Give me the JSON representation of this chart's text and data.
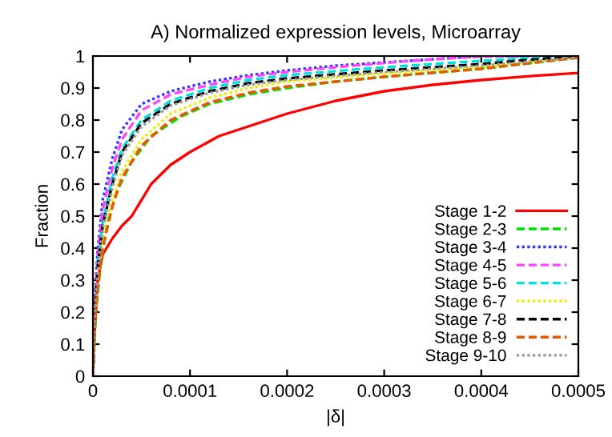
{
  "chart_data": {
    "type": "line",
    "title": "A) Normalized expression levels, Microarray",
    "xlabel": "|δ|",
    "ylabel": "Fraction",
    "xlim": [
      0,
      0.0005
    ],
    "ylim": [
      0,
      1
    ],
    "xticks": [
      0,
      0.0001,
      0.0002,
      0.0003,
      0.0004,
      0.0005
    ],
    "yticks": [
      0,
      0.1,
      0.2,
      0.3,
      0.4,
      0.5,
      0.6,
      0.7,
      0.8,
      0.9,
      1
    ],
    "grid": false,
    "legend": "bottom right",
    "marker": "none",
    "x": [
      0,
      2e-06,
      5e-06,
      1e-05,
      2e-05,
      3e-05,
      5e-05,
      8e-05,
      0.00012,
      0.00016,
      0.0002,
      0.00025,
      0.0003,
      0.00035,
      0.0004,
      0.00045,
      0.0005
    ],
    "series": [
      {
        "name": "Stage 1-2",
        "color": "#ff0000",
        "line_style": "solid",
        "x": [
          0,
          2e-06,
          5e-06,
          1e-05,
          2e-05,
          3e-05,
          4e-05,
          6e-05,
          8e-05,
          0.0001,
          0.00013,
          0.00016,
          0.0002,
          0.00025,
          0.0003,
          0.00035,
          0.0004,
          0.00045,
          0.0005
        ],
        "values": [
          0,
          0.15,
          0.3,
          0.38,
          0.43,
          0.47,
          0.5,
          0.6,
          0.66,
          0.7,
          0.75,
          0.78,
          0.82,
          0.86,
          0.89,
          0.91,
          0.925,
          0.937,
          0.947
        ]
      },
      {
        "name": "Stage 2-3",
        "color": "#00dd00",
        "line_style": "dashed",
        "x": [
          0,
          3e-06,
          8e-06,
          1.5e-05,
          2.5e-05,
          4e-05,
          6e-05,
          9e-05,
          0.00012,
          0.00016,
          0.0002,
          0.00025,
          0.0003,
          0.0004,
          0.0005
        ],
        "values": [
          0,
          0.2,
          0.35,
          0.48,
          0.58,
          0.67,
          0.75,
          0.81,
          0.85,
          0.88,
          0.9,
          0.92,
          0.935,
          0.96,
          0.995
        ]
      },
      {
        "name": "Stage 3-4",
        "color": "#3333ff",
        "line_style": "dotted",
        "values": [
          0,
          0.25,
          0.4,
          0.55,
          0.68,
          0.77,
          0.85,
          0.89,
          0.92,
          0.94,
          0.955,
          0.97,
          0.98,
          0.99,
          1.0,
          1.0,
          1.0
        ]
      },
      {
        "name": "Stage 4-5",
        "color": "#ff44ff",
        "line_style": "dashed",
        "values": [
          0,
          0.23,
          0.38,
          0.52,
          0.65,
          0.74,
          0.83,
          0.88,
          0.91,
          0.935,
          0.95,
          0.965,
          0.978,
          0.99,
          0.998,
          1.0,
          1.0
        ]
      },
      {
        "name": "Stage 5-6",
        "color": "#00e0e0",
        "line_style": "dashed",
        "values": [
          null,
          null,
          0.35,
          0.48,
          0.62,
          0.71,
          0.8,
          0.86,
          0.9,
          0.925,
          0.94,
          0.953,
          0.965,
          0.975,
          0.985,
          0.993,
          1.0
        ]
      },
      {
        "name": "Stage 6-7",
        "color": "#eeee00",
        "line_style": "dotted",
        "values": [
          0,
          0.18,
          0.3,
          0.42,
          0.55,
          0.64,
          0.74,
          0.82,
          0.87,
          0.9,
          0.92,
          0.933,
          0.945,
          0.955,
          0.965,
          0.98,
          0.995
        ]
      },
      {
        "name": "Stage 7-8",
        "color": "#000000",
        "line_style": "dashed",
        "values": [
          0,
          0.2,
          0.34,
          0.47,
          0.6,
          0.7,
          0.79,
          0.85,
          0.89,
          0.915,
          0.93,
          0.943,
          0.955,
          0.965,
          0.975,
          0.988,
          1.0
        ]
      },
      {
        "name": "Stage 8-9",
        "color": "#ee5500",
        "line_style": "dashed",
        "values": [
          0,
          0.17,
          0.28,
          0.4,
          0.53,
          0.62,
          0.72,
          0.8,
          0.855,
          0.885,
          0.905,
          0.92,
          0.935,
          0.948,
          0.96,
          0.978,
          0.995
        ]
      },
      {
        "name": "Stage 9-10",
        "color": "#999999",
        "line_style": "dotted",
        "values": [
          0,
          0.2,
          0.33,
          0.46,
          0.59,
          0.69,
          0.78,
          0.845,
          0.885,
          0.91,
          0.925,
          0.938,
          0.95,
          0.96,
          0.97,
          0.983,
          0.995
        ]
      }
    ]
  }
}
